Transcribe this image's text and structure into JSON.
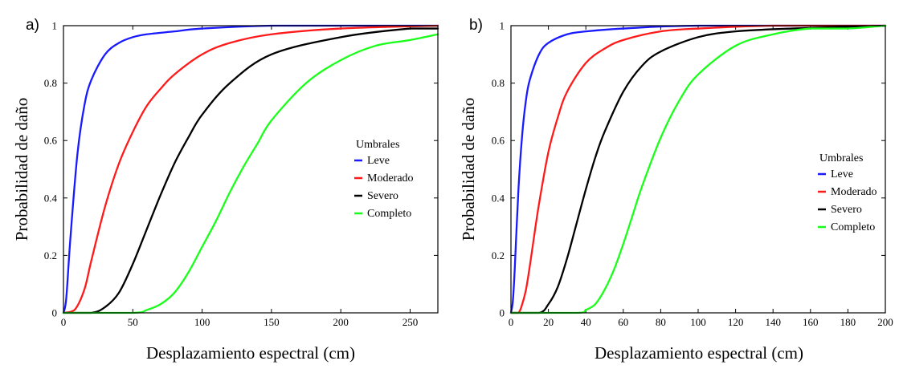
{
  "figure": {
    "series_colors": {
      "Leve": "#1a1aff",
      "Moderado": "#ff1a1a",
      "Severo": "#000000",
      "Completo": "#1aff1a"
    }
  },
  "chart_data": [
    {
      "type": "line",
      "panel_label": "a)",
      "xlabel": "Desplazamiento espectral  (cm)",
      "ylabel": "Probabilidad de daño",
      "xlim": [
        0,
        270
      ],
      "ylim": [
        0,
        1
      ],
      "xticks": [
        "0",
        "50",
        "100",
        "150",
        "200",
        "250"
      ],
      "yticks": [
        "0",
        "0.2",
        "0.4",
        "0.6",
        "0.8",
        "1"
      ],
      "legend": {
        "title": "Umbrales",
        "entries": [
          "Leve",
          "Moderado",
          "Severo",
          "Completo"
        ]
      },
      "series": [
        {
          "name": "Leve",
          "color": "#1a1aff",
          "x": [
            0,
            2,
            5,
            10,
            15,
            20,
            30,
            40,
            50,
            60,
            80,
            100,
            150,
            200,
            270
          ],
          "y": [
            0,
            0.05,
            0.26,
            0.55,
            0.72,
            0.81,
            0.9,
            0.94,
            0.96,
            0.97,
            0.98,
            0.99,
            1.0,
            1.0,
            1.0
          ]
        },
        {
          "name": "Moderado",
          "color": "#ff1a1a",
          "x": [
            0,
            8,
            15,
            20,
            30,
            40,
            50,
            60,
            70,
            80,
            100,
            120,
            150,
            200,
            270
          ],
          "y": [
            0,
            0.01,
            0.08,
            0.18,
            0.37,
            0.52,
            0.63,
            0.72,
            0.78,
            0.83,
            0.9,
            0.94,
            0.97,
            0.99,
            1.0
          ]
        },
        {
          "name": "Severo",
          "color": "#000000",
          "x": [
            0,
            20,
            30,
            40,
            50,
            60,
            70,
            80,
            90,
            100,
            120,
            150,
            200,
            250,
            270
          ],
          "y": [
            0,
            0.0,
            0.02,
            0.07,
            0.17,
            0.29,
            0.41,
            0.52,
            0.61,
            0.69,
            0.8,
            0.9,
            0.96,
            0.99,
            0.99
          ]
        },
        {
          "name": "Completo",
          "color": "#1aff1a",
          "x": [
            0,
            50,
            60,
            70,
            80,
            90,
            100,
            110,
            120,
            130,
            140,
            150,
            175,
            200,
            225,
            250,
            270
          ],
          "y": [
            0,
            0.0,
            0.01,
            0.03,
            0.07,
            0.14,
            0.23,
            0.32,
            0.42,
            0.51,
            0.59,
            0.67,
            0.8,
            0.88,
            0.93,
            0.95,
            0.97
          ]
        }
      ]
    },
    {
      "type": "line",
      "panel_label": "b)",
      "xlabel": "Desplazamiento espectral  (cm)",
      "ylabel": "Probabilidad de daño",
      "xlim": [
        0,
        200
      ],
      "ylim": [
        0,
        1
      ],
      "xticks": [
        "0",
        "20",
        "40",
        "60",
        "80",
        "100",
        "120",
        "140",
        "160",
        "180",
        "200"
      ],
      "yticks": [
        "0",
        "0.2",
        "0.4",
        "0.6",
        "0.8",
        "1"
      ],
      "legend": {
        "title": "Umbrales",
        "entries": [
          "Leve",
          "Moderado",
          "Severo",
          "Completo"
        ]
      },
      "series": [
        {
          "name": "Leve",
          "color": "#1a1aff",
          "x": [
            0,
            1,
            2,
            4,
            6,
            8,
            10,
            15,
            20,
            30,
            40,
            60,
            100,
            200
          ],
          "y": [
            0,
            0.04,
            0.15,
            0.43,
            0.62,
            0.74,
            0.81,
            0.9,
            0.94,
            0.97,
            0.98,
            0.99,
            1.0,
            1.0
          ]
        },
        {
          "name": "Moderado",
          "color": "#ff1a1a",
          "x": [
            0,
            4,
            6,
            8,
            10,
            12,
            15,
            20,
            25,
            30,
            40,
            50,
            60,
            80,
            100,
            140,
            200
          ],
          "y": [
            0,
            0.0,
            0.03,
            0.08,
            0.16,
            0.25,
            0.38,
            0.56,
            0.68,
            0.77,
            0.87,
            0.92,
            0.95,
            0.98,
            0.99,
            1.0,
            1.0
          ]
        },
        {
          "name": "Severo",
          "color": "#000000",
          "x": [
            0,
            15,
            20,
            25,
            30,
            35,
            40,
            45,
            50,
            60,
            70,
            80,
            100,
            120,
            150,
            200
          ],
          "y": [
            0,
            0.0,
            0.03,
            0.09,
            0.19,
            0.31,
            0.43,
            0.54,
            0.63,
            0.77,
            0.86,
            0.91,
            0.96,
            0.98,
            0.99,
            1.0
          ]
        },
        {
          "name": "Completo",
          "color": "#1aff1a",
          "x": [
            0,
            35,
            40,
            45,
            50,
            55,
            60,
            65,
            70,
            80,
            90,
            100,
            120,
            140,
            160,
            180,
            200
          ],
          "y": [
            0,
            0.0,
            0.01,
            0.03,
            0.08,
            0.15,
            0.24,
            0.34,
            0.44,
            0.61,
            0.74,
            0.83,
            0.93,
            0.97,
            0.99,
            0.99,
            1.0
          ]
        }
      ]
    }
  ]
}
